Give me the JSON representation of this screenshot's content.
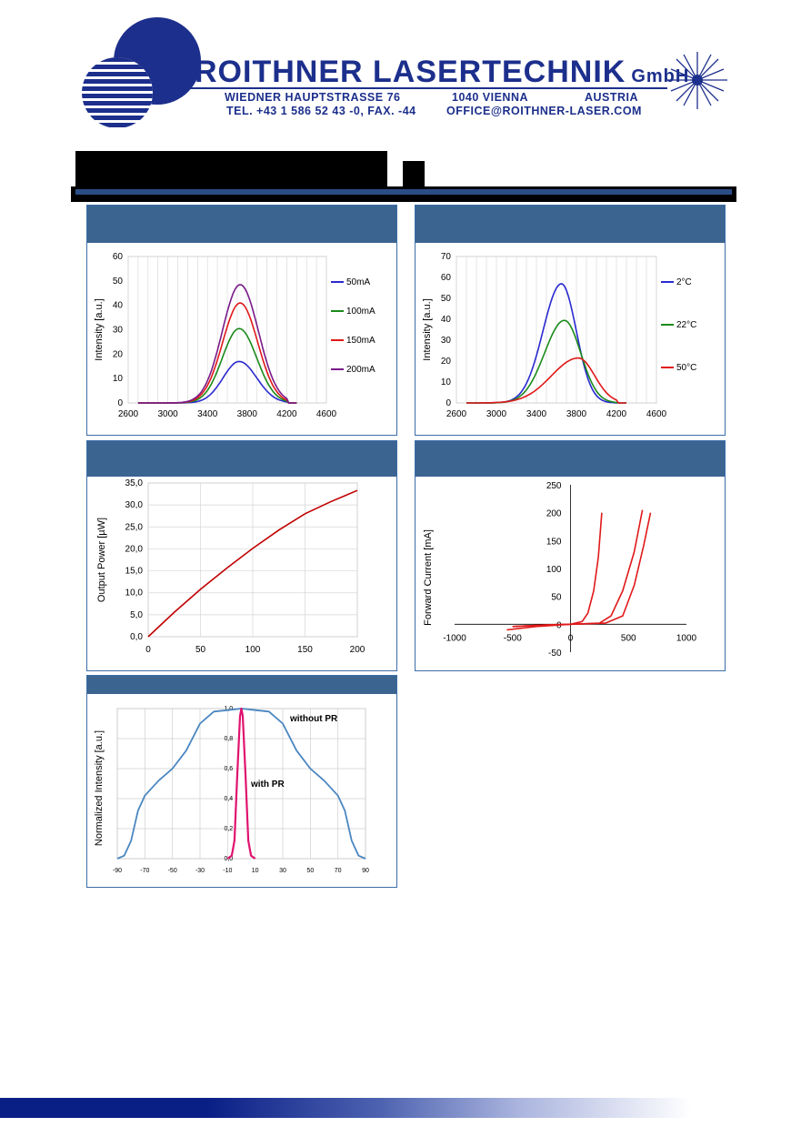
{
  "header": {
    "company_main": "ROITHNER LASERTECHNIK",
    "company_suffix": "GmbH",
    "address_street": "WIEDNER HAUPTSTRASSE 76",
    "address_city": "1040 VIENNA",
    "address_country": "AUSTRIA",
    "phone_fax": "TEL. +43 1 586 52 43 -0, FAX. -44",
    "email": "OFFICE@ROITHNER-LASER.COM",
    "logo_color": "#1c2f8c"
  },
  "colors": {
    "panel_header": "#3b6491",
    "panel_border": "#3b6ea8",
    "title_rule": "#2b4d86",
    "blue": "#2a2ad0",
    "green": "#1a8a1a",
    "red": "#e01818",
    "purple": "#7a1a8a",
    "darkred": "#c00000",
    "steel": "#4a86c0",
    "magenta": "#e0126e"
  },
  "chart_data": [
    {
      "type": "line",
      "ylabel": "Intensity [a.u.]",
      "xlim": [
        2600,
        4600
      ],
      "ylim": [
        0,
        60
      ],
      "xticks": [
        2600,
        3000,
        3400,
        3800,
        4200,
        4600
      ],
      "yticks": [
        0,
        10,
        20,
        30,
        40,
        50,
        60
      ],
      "legend_position": "right",
      "series": [
        {
          "name": "50mA",
          "color": "blue",
          "peak_x": 3720,
          "peak": 17
        },
        {
          "name": "100mA",
          "color": "green",
          "peak_x": 3720,
          "peak": 30.5
        },
        {
          "name": "150mA",
          "color": "red",
          "peak_x": 3730,
          "peak": 41
        },
        {
          "name": "200mA",
          "color": "purple",
          "peak_x": 3730,
          "peak": 48.5
        }
      ]
    },
    {
      "type": "line",
      "ylabel": "Intensity [a.u.]",
      "xlim": [
        2600,
        4600
      ],
      "ylim": [
        0,
        70
      ],
      "xticks": [
        2600,
        3000,
        3400,
        3800,
        4200,
        4600
      ],
      "yticks": [
        0,
        10,
        20,
        30,
        40,
        50,
        60,
        70
      ],
      "legend_position": "right",
      "series": [
        {
          "name": "2°C",
          "color": "blue",
          "peak_x": 3650,
          "peak": 57
        },
        {
          "name": "22°C",
          "color": "green",
          "peak_x": 3680,
          "peak": 39.5
        },
        {
          "name": "50°C",
          "color": "red",
          "peak_x": 3820,
          "peak": 21.5
        }
      ]
    },
    {
      "type": "line",
      "ylabel": "Output Power [µW]",
      "xlim": [
        0,
        200
      ],
      "ylim": [
        0,
        35
      ],
      "xticks": [
        0,
        50,
        100,
        150,
        200
      ],
      "yticks": [
        "0,0",
        "5,0",
        "10,0",
        "15,0",
        "20,0",
        "25,0",
        "30,0",
        "35,0"
      ],
      "series": [
        {
          "x": [
            0,
            25,
            50,
            75,
            100,
            125,
            150,
            175,
            200
          ],
          "y": [
            0,
            5.6,
            10.8,
            15.6,
            20.1,
            24.3,
            28.0,
            30.8,
            33.3
          ]
        }
      ]
    },
    {
      "type": "line",
      "ylabel": "Forward Current [mA]",
      "xlim": [
        -1000,
        1000
      ],
      "ylim": [
        -50,
        250
      ],
      "xticks": [
        -1000,
        -500,
        0,
        500,
        1000
      ],
      "yticks": [
        -50,
        0,
        50,
        100,
        150,
        200,
        250
      ],
      "series": [
        {
          "x": [
            -500,
            -300,
            0,
            100,
            150,
            200,
            240,
            270
          ],
          "y": [
            -4,
            -2,
            0,
            5,
            20,
            60,
            120,
            200
          ]
        },
        {
          "x": [
            -550,
            -300,
            0,
            250,
            350,
            450,
            550,
            620
          ],
          "y": [
            -10,
            -4,
            0,
            2,
            15,
            60,
            130,
            205
          ]
        },
        {
          "x": [
            -500,
            -200,
            0,
            300,
            450,
            550,
            630,
            690
          ],
          "y": [
            -4,
            -1,
            0,
            2,
            15,
            70,
            140,
            200
          ]
        }
      ]
    },
    {
      "type": "line",
      "ylabel": "Normalized Intensity [a.u.]",
      "xlim": [
        -90,
        90
      ],
      "ylim": [
        0,
        1.0
      ],
      "xticks": [
        -90,
        -70,
        -50,
        -30,
        -10,
        10,
        30,
        50,
        70,
        90
      ],
      "yticks": [
        "0,0",
        "0,2",
        "0,4",
        "0,6",
        "0,8",
        "1,0"
      ],
      "series": [
        {
          "name": "without PR",
          "color": "steel",
          "x": [
            -90,
            -85,
            -80,
            -75,
            -70,
            -60,
            -50,
            -40,
            -30,
            -20,
            -10,
            0,
            10,
            20,
            30,
            40,
            50,
            60,
            70,
            75,
            80,
            85,
            90
          ],
          "y": [
            0.0,
            0.02,
            0.12,
            0.32,
            0.42,
            0.52,
            0.6,
            0.72,
            0.9,
            0.98,
            0.99,
            1.0,
            0.99,
            0.98,
            0.9,
            0.72,
            0.6,
            0.52,
            0.42,
            0.32,
            0.12,
            0.02,
            0.0
          ]
        },
        {
          "name": "with PR",
          "color": "magenta",
          "x": [
            -10,
            -7,
            -5,
            -3,
            -1,
            0,
            1,
            3,
            5,
            7,
            10
          ],
          "y": [
            0.0,
            0.02,
            0.12,
            0.55,
            0.95,
            1.0,
            0.95,
            0.55,
            0.12,
            0.02,
            0.0
          ]
        }
      ]
    }
  ]
}
